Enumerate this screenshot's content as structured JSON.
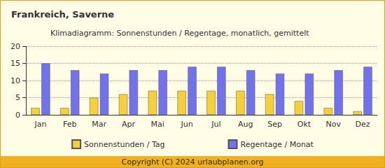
{
  "chart_data": {
    "type": "bar",
    "title": "Frankreich, Saverne",
    "subtitle": "Klimadiagramm: Sonnenstunden / Regentage, monatlich, gemittelt",
    "categories": [
      "Jan",
      "Feb",
      "Mar",
      "Apr",
      "Mai",
      "Jun",
      "Jul",
      "Aug",
      "Sep",
      "Okt",
      "Nov",
      "Dez"
    ],
    "series": [
      {
        "name": "Sonnenstunden / Tag",
        "color": "#f5cf3c",
        "values": [
          2,
          2,
          5,
          6,
          7,
          7,
          7,
          7,
          6,
          4,
          2,
          1
        ]
      },
      {
        "name": "Regentage / Monat",
        "color": "#7272ea",
        "values": [
          15,
          13,
          12,
          13,
          13,
          14,
          14,
          13,
          12,
          12,
          13,
          14
        ]
      }
    ],
    "ylim": [
      0,
      20
    ],
    "yticks": [
      0,
      5,
      10,
      15,
      20
    ],
    "grid": true,
    "legend": "bottom",
    "annotations": [
      "Copyright (C) 2024 urlaubplanen.org"
    ]
  }
}
